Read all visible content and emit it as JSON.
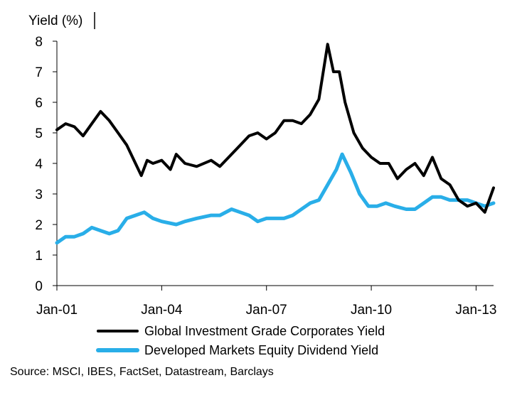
{
  "chart_data": {
    "type": "line",
    "ylabel": "Yield (%)",
    "ylim": [
      0,
      8
    ],
    "yticks": [
      "0",
      "1",
      "2",
      "3",
      "4",
      "5",
      "6",
      "7",
      "8"
    ],
    "xticks": [
      "Jan-01",
      "Jan-04",
      "Jan-07",
      "Jan-10",
      "Jan-13"
    ],
    "xlim": [
      "2001-01",
      "2013-07"
    ],
    "grid": false,
    "legend_position": "bottom",
    "series": [
      {
        "name": "Global Investment Grade Corporates Yield",
        "color": "#000000",
        "points": [
          [
            "2001-01",
            5.1
          ],
          [
            "2001-04",
            5.3
          ],
          [
            "2001-07",
            5.2
          ],
          [
            "2001-10",
            4.9
          ],
          [
            "2002-01",
            5.3
          ],
          [
            "2002-04",
            5.7
          ],
          [
            "2002-07",
            5.4
          ],
          [
            "2002-10",
            5.0
          ],
          [
            "2003-01",
            4.6
          ],
          [
            "2003-04",
            4.0
          ],
          [
            "2003-06",
            3.6
          ],
          [
            "2003-08",
            4.1
          ],
          [
            "2003-10",
            4.0
          ],
          [
            "2004-01",
            4.1
          ],
          [
            "2004-04",
            3.8
          ],
          [
            "2004-06",
            4.3
          ],
          [
            "2004-09",
            4.0
          ],
          [
            "2005-01",
            3.9
          ],
          [
            "2005-06",
            4.1
          ],
          [
            "2005-09",
            3.9
          ],
          [
            "2006-01",
            4.3
          ],
          [
            "2006-04",
            4.6
          ],
          [
            "2006-07",
            4.9
          ],
          [
            "2006-10",
            5.0
          ],
          [
            "2007-01",
            4.8
          ],
          [
            "2007-04",
            5.0
          ],
          [
            "2007-07",
            5.4
          ],
          [
            "2007-10",
            5.4
          ],
          [
            "2008-01",
            5.3
          ],
          [
            "2008-04",
            5.6
          ],
          [
            "2008-07",
            6.1
          ],
          [
            "2008-10",
            7.9
          ],
          [
            "2008-12",
            7.0
          ],
          [
            "2009-02",
            7.0
          ],
          [
            "2009-04",
            6.0
          ],
          [
            "2009-07",
            5.0
          ],
          [
            "2009-10",
            4.5
          ],
          [
            "2010-01",
            4.2
          ],
          [
            "2010-04",
            4.0
          ],
          [
            "2010-07",
            4.0
          ],
          [
            "2010-10",
            3.5
          ],
          [
            "2011-01",
            3.8
          ],
          [
            "2011-04",
            4.0
          ],
          [
            "2011-07",
            3.6
          ],
          [
            "2011-10",
            4.2
          ],
          [
            "2012-01",
            3.5
          ],
          [
            "2012-04",
            3.3
          ],
          [
            "2012-07",
            2.8
          ],
          [
            "2012-10",
            2.6
          ],
          [
            "2013-01",
            2.7
          ],
          [
            "2013-04",
            2.4
          ],
          [
            "2013-07",
            3.2
          ]
        ]
      },
      {
        "name": "Developed Markets Equity Dividend Yield",
        "color": "#29aee8",
        "points": [
          [
            "2001-01",
            1.4
          ],
          [
            "2001-04",
            1.6
          ],
          [
            "2001-07",
            1.6
          ],
          [
            "2001-10",
            1.7
          ],
          [
            "2002-01",
            1.9
          ],
          [
            "2002-04",
            1.8
          ],
          [
            "2002-07",
            1.7
          ],
          [
            "2002-10",
            1.8
          ],
          [
            "2003-01",
            2.2
          ],
          [
            "2003-04",
            2.3
          ],
          [
            "2003-07",
            2.4
          ],
          [
            "2003-10",
            2.2
          ],
          [
            "2004-01",
            2.1
          ],
          [
            "2004-06",
            2.0
          ],
          [
            "2004-09",
            2.1
          ],
          [
            "2005-01",
            2.2
          ],
          [
            "2005-06",
            2.3
          ],
          [
            "2005-09",
            2.3
          ],
          [
            "2006-01",
            2.5
          ],
          [
            "2006-04",
            2.4
          ],
          [
            "2006-07",
            2.3
          ],
          [
            "2006-10",
            2.1
          ],
          [
            "2007-01",
            2.2
          ],
          [
            "2007-04",
            2.2
          ],
          [
            "2007-07",
            2.2
          ],
          [
            "2007-10",
            2.3
          ],
          [
            "2008-01",
            2.5
          ],
          [
            "2008-04",
            2.7
          ],
          [
            "2008-07",
            2.8
          ],
          [
            "2008-10",
            3.3
          ],
          [
            "2009-01",
            3.8
          ],
          [
            "2009-03",
            4.3
          ],
          [
            "2009-06",
            3.7
          ],
          [
            "2009-09",
            3.0
          ],
          [
            "2009-12",
            2.6
          ],
          [
            "2010-03",
            2.6
          ],
          [
            "2010-06",
            2.7
          ],
          [
            "2010-09",
            2.6
          ],
          [
            "2011-01",
            2.5
          ],
          [
            "2011-04",
            2.5
          ],
          [
            "2011-07",
            2.7
          ],
          [
            "2011-10",
            2.9
          ],
          [
            "2012-01",
            2.9
          ],
          [
            "2012-04",
            2.8
          ],
          [
            "2012-07",
            2.8
          ],
          [
            "2012-10",
            2.8
          ],
          [
            "2013-01",
            2.7
          ],
          [
            "2013-04",
            2.6
          ],
          [
            "2013-07",
            2.7
          ]
        ]
      }
    ],
    "source": "Source: MSCI, IBES, FactSet, Datastream, Barclays"
  }
}
